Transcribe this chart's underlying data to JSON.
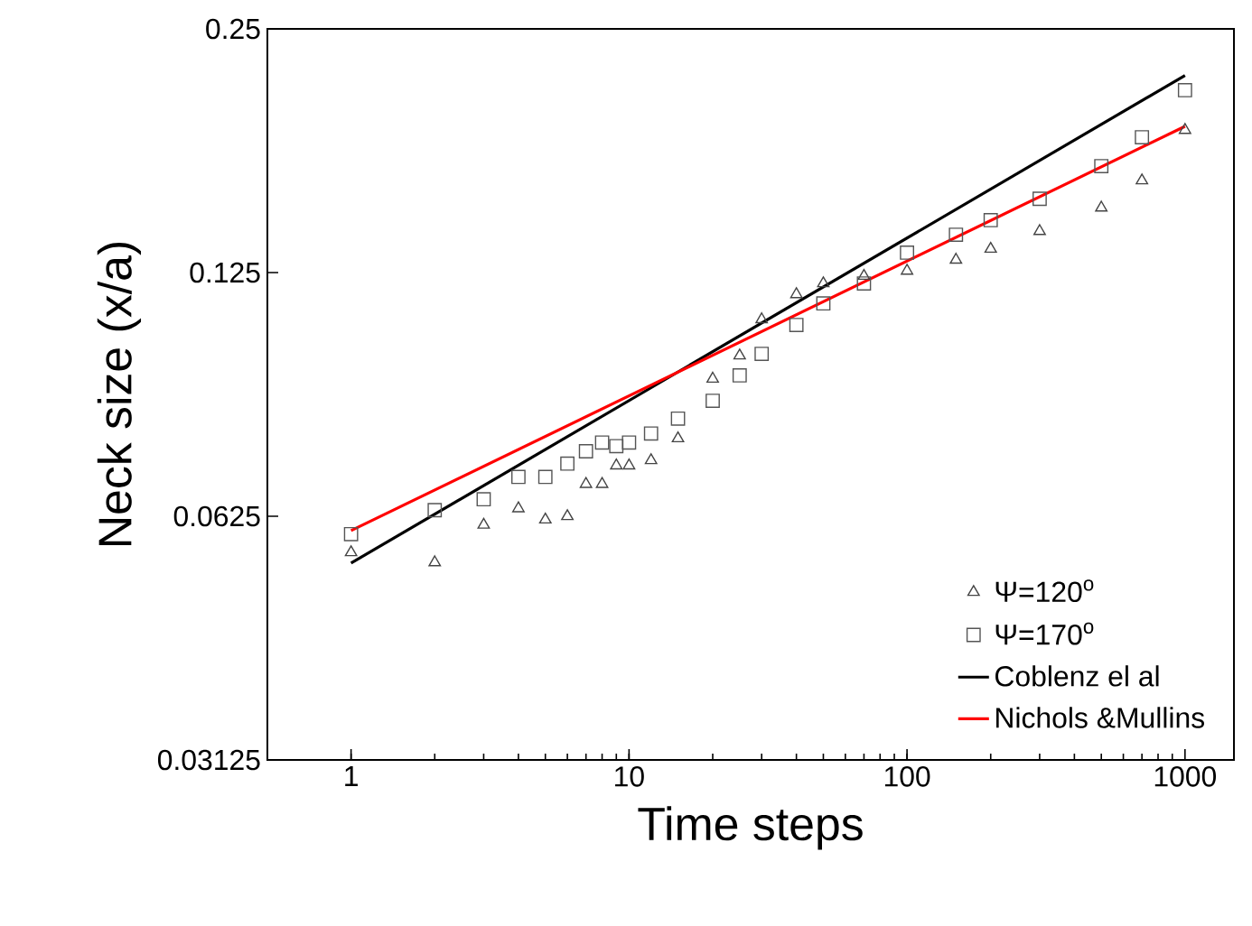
{
  "chart_data": {
    "type": "scatter",
    "xlabel": "Time steps",
    "ylabel": "Neck size (x/a)",
    "log": "xy",
    "xlim": [
      0.5,
      1500
    ],
    "ylim": [
      0.03125,
      0.25
    ],
    "xticks": [
      1,
      10,
      100,
      1000
    ],
    "yticks": [
      0.03125,
      0.0625,
      0.125,
      0.25
    ],
    "legend": "bottom right",
    "grid": false,
    "series": [
      {
        "name": "Ψ=120$^{o}$",
        "marker": "triangle",
        "color": "#444444",
        "x": [
          1,
          2,
          3,
          4,
          5,
          6,
          7,
          8,
          9,
          10,
          12,
          15,
          20,
          25,
          30,
          40,
          50,
          70,
          100,
          150,
          200,
          300,
          500,
          700,
          1000
        ],
        "values": [
          0.0564,
          0.0548,
          0.061,
          0.0639,
          0.0619,
          0.0625,
          0.0685,
          0.0685,
          0.0722,
          0.0722,
          0.0733,
          0.078,
          0.0924,
          0.0987,
          0.1094,
          0.1175,
          0.1212,
          0.1238,
          0.1256,
          0.1296,
          0.1337,
          0.1406,
          0.1503,
          0.1624,
          0.1875
        ]
      },
      {
        "name": "Ψ=170$^{o}$",
        "marker": "square",
        "color": "#555555",
        "x": [
          1,
          2,
          3,
          4,
          5,
          6,
          7,
          8,
          9,
          10,
          12,
          15,
          20,
          25,
          30,
          40,
          50,
          70,
          100,
          150,
          200,
          300,
          500,
          700,
          1000
        ],
        "values": [
          0.0594,
          0.0636,
          0.0656,
          0.0699,
          0.0699,
          0.0726,
          0.0752,
          0.0771,
          0.0763,
          0.0771,
          0.0791,
          0.0825,
          0.0868,
          0.0933,
          0.0992,
          0.1077,
          0.1145,
          0.1212,
          0.1323,
          0.1392,
          0.1451,
          0.1542,
          0.1692,
          0.1837,
          0.21
        ]
      },
      {
        "name": "Coblenz el al",
        "type": "line",
        "color": "#000000",
        "x": [
          1,
          1000
        ],
        "values": [
          0.0547,
          0.219
        ]
      },
      {
        "name": "Nichols &Mullins",
        "type": "line",
        "color": "#ff0000",
        "x": [
          1,
          1000
        ],
        "values": [
          0.06,
          0.1895
        ]
      }
    ]
  }
}
